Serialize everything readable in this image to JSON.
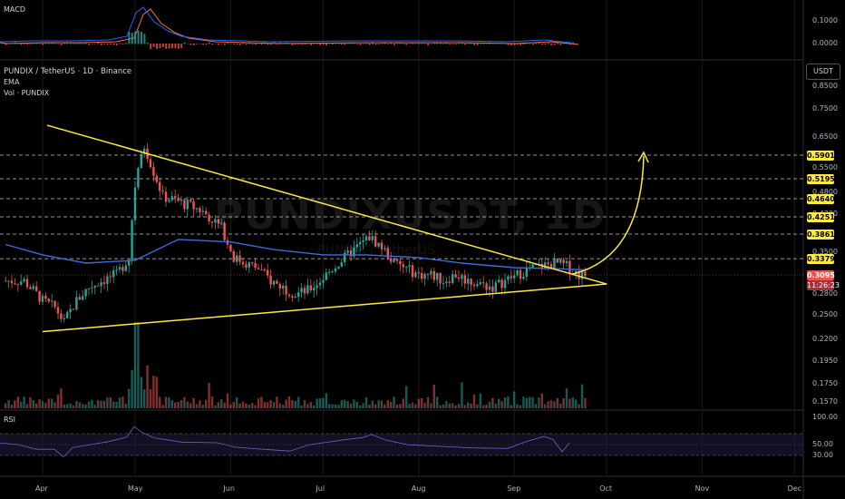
{
  "chart_data": [
    {
      "type": "line",
      "panel": "macd",
      "title": "MACD",
      "y_ticks": [
        "0.1000",
        "0.0000"
      ],
      "ylim": [
        -0.03,
        0.13
      ]
    },
    {
      "type": "candlestick",
      "panel": "price",
      "title": "PUNDIX / TetherUS · 1D · Binance",
      "indicators": [
        "EMA",
        "Vol · PUNDIX"
      ],
      "currency": "USDT",
      "watermark": "PUNDIXUSDT, 1D",
      "watermark_sub": "PUNDIX / TetherUS",
      "y_ticks": [
        {
          "value": 0.85,
          "label": "0.8500"
        },
        {
          "value": 0.75,
          "label": "0.7500"
        },
        {
          "value": 0.65,
          "label": "0.6500"
        },
        {
          "value": 0.55,
          "label": "0.5500"
        },
        {
          "value": 0.48,
          "label": "0.4800"
        },
        {
          "value": 0.43,
          "label": "0.4300"
        },
        {
          "value": 0.35,
          "label": "0.3500"
        },
        {
          "value": 0.28,
          "label": "0.2800"
        },
        {
          "value": 0.25,
          "label": "0.2500"
        },
        {
          "value": 0.22,
          "label": "0.2200"
        },
        {
          "value": 0.195,
          "label": "0.1950"
        },
        {
          "value": 0.175,
          "label": "0.1750"
        },
        {
          "value": 0.157,
          "label": "0.1570"
        }
      ],
      "levels": [
        {
          "value": 0.5901,
          "label": "0.5901"
        },
        {
          "value": 0.5195,
          "label": "0.5195"
        },
        {
          "value": 0.464,
          "label": "0.4640"
        },
        {
          "value": 0.4251,
          "label": "0.4251"
        },
        {
          "value": 0.3861,
          "label": "0.3861"
        },
        {
          "value": 0.3379,
          "label": "0.3379"
        }
      ],
      "last_price": {
        "value": 0.3095,
        "label": "0.3095",
        "countdown": "11:26:23"
      },
      "x_ticks": [
        "Apr",
        "May",
        "Jun",
        "Jul",
        "Aug",
        "Sep",
        "Oct",
        "Nov",
        "Dec"
      ],
      "triangle": {
        "upper_start": [
          "Apr 1",
          0.69
        ],
        "lower_start": [
          "Apr 1",
          0.229
        ],
        "apex": [
          "Oct 1",
          0.295
        ]
      },
      "price_path": [
        [
          "Mar 20",
          0.3
        ],
        [
          "Mar 26",
          0.3
        ],
        [
          "Apr 1",
          0.27
        ],
        [
          "Apr 5",
          0.26
        ],
        [
          "Apr 8",
          0.24
        ],
        [
          "Apr 12",
          0.27
        ],
        [
          "Apr 16",
          0.29
        ],
        [
          "Apr 20",
          0.3
        ],
        [
          "Apr 25",
          0.31
        ],
        [
          "Apr 29",
          0.34
        ],
        [
          "May 1",
          0.5
        ],
        [
          "May 4",
          0.62
        ],
        [
          "May 7",
          0.54
        ],
        [
          "May 10",
          0.47
        ],
        [
          "May 14",
          0.46
        ],
        [
          "May 18",
          0.45
        ],
        [
          "May 22",
          0.44
        ],
        [
          "May 26",
          0.42
        ],
        [
          "May 29",
          0.4
        ],
        [
          "Jun 2",
          0.34
        ],
        [
          "Jun 6",
          0.33
        ],
        [
          "Jun 10",
          0.32
        ],
        [
          "Jun 14",
          0.3
        ],
        [
          "Jun 18",
          0.29
        ],
        [
          "Jun 22",
          0.28
        ],
        [
          "Jun 26",
          0.285
        ],
        [
          "Jun 30",
          0.3
        ],
        [
          "Jul 4",
          0.32
        ],
        [
          "Jul 8",
          0.34
        ],
        [
          "Jul 12",
          0.36
        ],
        [
          "Jul 16",
          0.38
        ],
        [
          "Jul 20",
          0.36
        ],
        [
          "Jul 24",
          0.33
        ],
        [
          "Jul 28",
          0.32
        ],
        [
          "Aug 1",
          0.31
        ],
        [
          "Aug 5",
          0.31
        ],
        [
          "Aug 9",
          0.3
        ],
        [
          "Aug 13",
          0.31
        ],
        [
          "Aug 17",
          0.3
        ],
        [
          "Aug 21",
          0.295
        ],
        [
          "Aug 25",
          0.29
        ],
        [
          "Aug 29",
          0.3
        ],
        [
          "Sep 2",
          0.31
        ],
        [
          "Sep 6",
          0.32
        ],
        [
          "Sep 10",
          0.325
        ],
        [
          "Sep 14",
          0.33
        ],
        [
          "Sep 18",
          0.325
        ],
        [
          "Sep 22",
          0.31
        ],
        [
          "Sep 24",
          0.3095
        ]
      ],
      "ema_path": [
        [
          "Mar 20",
          0.365
        ],
        [
          "Apr 1",
          0.345
        ],
        [
          "Apr 15",
          0.33
        ],
        [
          "May 1",
          0.335
        ],
        [
          "May 15",
          0.375
        ],
        [
          "Jun 1",
          0.37
        ],
        [
          "Jun 15",
          0.355
        ],
        [
          "Jul 1",
          0.345
        ],
        [
          "Jul 15",
          0.345
        ],
        [
          "Aug 1",
          0.34
        ],
        [
          "Aug 15",
          0.33
        ],
        [
          "Sep 1",
          0.322
        ],
        [
          "Sep 15",
          0.32
        ],
        [
          "Sep 24",
          0.318
        ]
      ]
    },
    {
      "type": "line",
      "panel": "rsi",
      "title": "RSI",
      "y_ticks": [
        {
          "value": 100,
          "label": "100.00"
        },
        {
          "value": 50,
          "label": "50.00"
        },
        {
          "value": 30,
          "label": "30.00"
        }
      ],
      "bands": [
        70,
        30
      ]
    }
  ],
  "colors": {
    "up": "#26a69a",
    "down": "#ef5350",
    "ema": "#3d6bdc",
    "levels": "#ffeb3b",
    "grid": "#1a1a1a"
  }
}
